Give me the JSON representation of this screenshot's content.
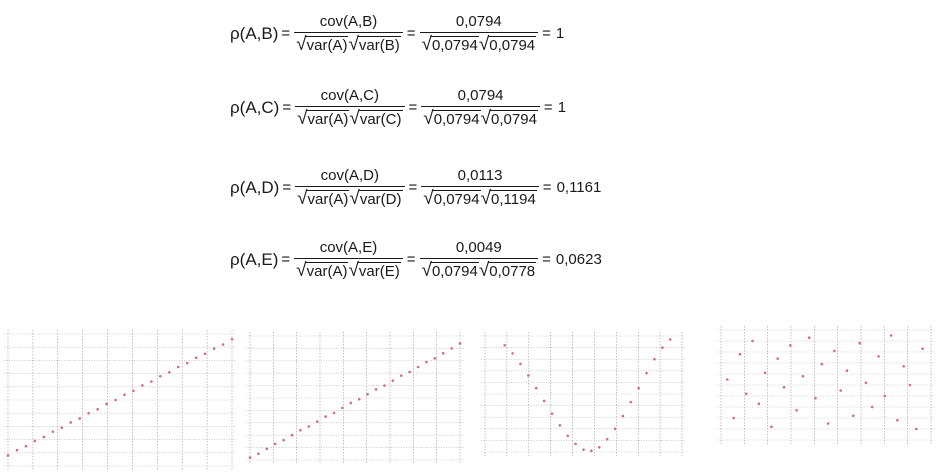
{
  "equations": [
    {
      "lhs": "ρ(A,B)",
      "eq1": "=",
      "num1": "cov(A,B)",
      "den1a": "var(A)",
      "den1b": "var(B)",
      "eq2": "=",
      "num2": "0,0794",
      "den2a": "0,0794",
      "den2b": "0,0794",
      "eq3": "=",
      "result": "1"
    },
    {
      "lhs": "ρ(A,C)",
      "eq1": "=",
      "num1": "cov(A,C)",
      "den1a": "var(A)",
      "den1b": "var(C)",
      "eq2": "=",
      "num2": "0,0794",
      "den2a": "0,0794",
      "den2b": "0,0794",
      "eq3": "=",
      "result": "1"
    },
    {
      "lhs": "ρ(A,D)",
      "eq1": "=",
      "num1": "cov(A,D)",
      "den1a": "var(A)",
      "den1b": "var(D)",
      "eq2": "=",
      "num2": "0,0113",
      "den2a": "0,0794",
      "den2b": "0,1194",
      "eq3": "=",
      "result": "0,1161"
    },
    {
      "lhs": "ρ(A,E)",
      "eq1": "=",
      "num1": "cov(A,E)",
      "den1a": "var(A)",
      "den1b": "var(E)",
      "eq2": "=",
      "num2": "0,0049",
      "den2a": "0,0794",
      "den2b": "0,0778",
      "eq3": "=",
      "result": "0,0623"
    }
  ],
  "chart_data": [
    {
      "type": "scatter",
      "points_x": [
        0,
        0.04,
        0.08,
        0.12,
        0.16,
        0.2,
        0.24,
        0.28,
        0.32,
        0.36,
        0.4,
        0.44,
        0.48,
        0.52,
        0.56,
        0.6,
        0.64,
        0.68,
        0.72,
        0.76,
        0.8,
        0.84,
        0.88,
        0.92,
        0.96,
        1
      ],
      "points_y": [
        0.08,
        0.12,
        0.15,
        0.19,
        0.22,
        0.26,
        0.29,
        0.33,
        0.36,
        0.4,
        0.43,
        0.47,
        0.5,
        0.54,
        0.57,
        0.61,
        0.64,
        0.68,
        0.71,
        0.75,
        0.78,
        0.82,
        0.85,
        0.89,
        0.92,
        0.96
      ],
      "grid": true,
      "marker_color": "#d26d7a"
    },
    {
      "type": "scatter",
      "points_x": [
        0,
        0.04,
        0.08,
        0.12,
        0.16,
        0.2,
        0.24,
        0.28,
        0.32,
        0.36,
        0.4,
        0.44,
        0.48,
        0.52,
        0.56,
        0.6,
        0.64,
        0.68,
        0.72,
        0.76,
        0.8,
        0.84,
        0.88,
        0.92,
        0.96,
        1
      ],
      "points_y": [
        0.02,
        0.05,
        0.09,
        0.13,
        0.16,
        0.2,
        0.24,
        0.27,
        0.31,
        0.35,
        0.38,
        0.42,
        0.46,
        0.49,
        0.53,
        0.57,
        0.6,
        0.64,
        0.68,
        0.71,
        0.75,
        0.79,
        0.82,
        0.86,
        0.9,
        0.94
      ],
      "grid": true,
      "marker_color": "#d26d7a"
    },
    {
      "type": "scatter",
      "points_x": [
        0.1,
        0.14,
        0.18,
        0.22,
        0.26,
        0.3,
        0.34,
        0.38,
        0.42,
        0.46,
        0.5,
        0.54,
        0.58,
        0.62,
        0.66,
        0.7,
        0.74,
        0.78,
        0.82,
        0.86,
        0.9,
        0.94
      ],
      "points_y": [
        0.92,
        0.85,
        0.76,
        0.66,
        0.55,
        0.44,
        0.33,
        0.23,
        0.14,
        0.07,
        0.02,
        0.01,
        0.04,
        0.11,
        0.2,
        0.31,
        0.43,
        0.55,
        0.68,
        0.8,
        0.9,
        0.97
      ],
      "grid": true,
      "marker_color": "#d26d7a"
    },
    {
      "type": "scatter",
      "points_x": [
        0.03,
        0.06,
        0.09,
        0.12,
        0.15,
        0.18,
        0.21,
        0.24,
        0.27,
        0.3,
        0.33,
        0.36,
        0.39,
        0.42,
        0.45,
        0.48,
        0.51,
        0.54,
        0.57,
        0.6,
        0.63,
        0.66,
        0.69,
        0.72,
        0.75,
        0.78,
        0.81,
        0.84,
        0.87,
        0.9,
        0.93,
        0.96
      ],
      "points_y": [
        0.55,
        0.2,
        0.78,
        0.42,
        0.9,
        0.33,
        0.61,
        0.12,
        0.74,
        0.48,
        0.86,
        0.27,
        0.58,
        0.93,
        0.38,
        0.69,
        0.15,
        0.81,
        0.45,
        0.63,
        0.22,
        0.88,
        0.52,
        0.3,
        0.76,
        0.4,
        0.95,
        0.18,
        0.67,
        0.5,
        0.1,
        0.83
      ],
      "grid": true,
      "marker_color": "#d26d7a"
    }
  ]
}
